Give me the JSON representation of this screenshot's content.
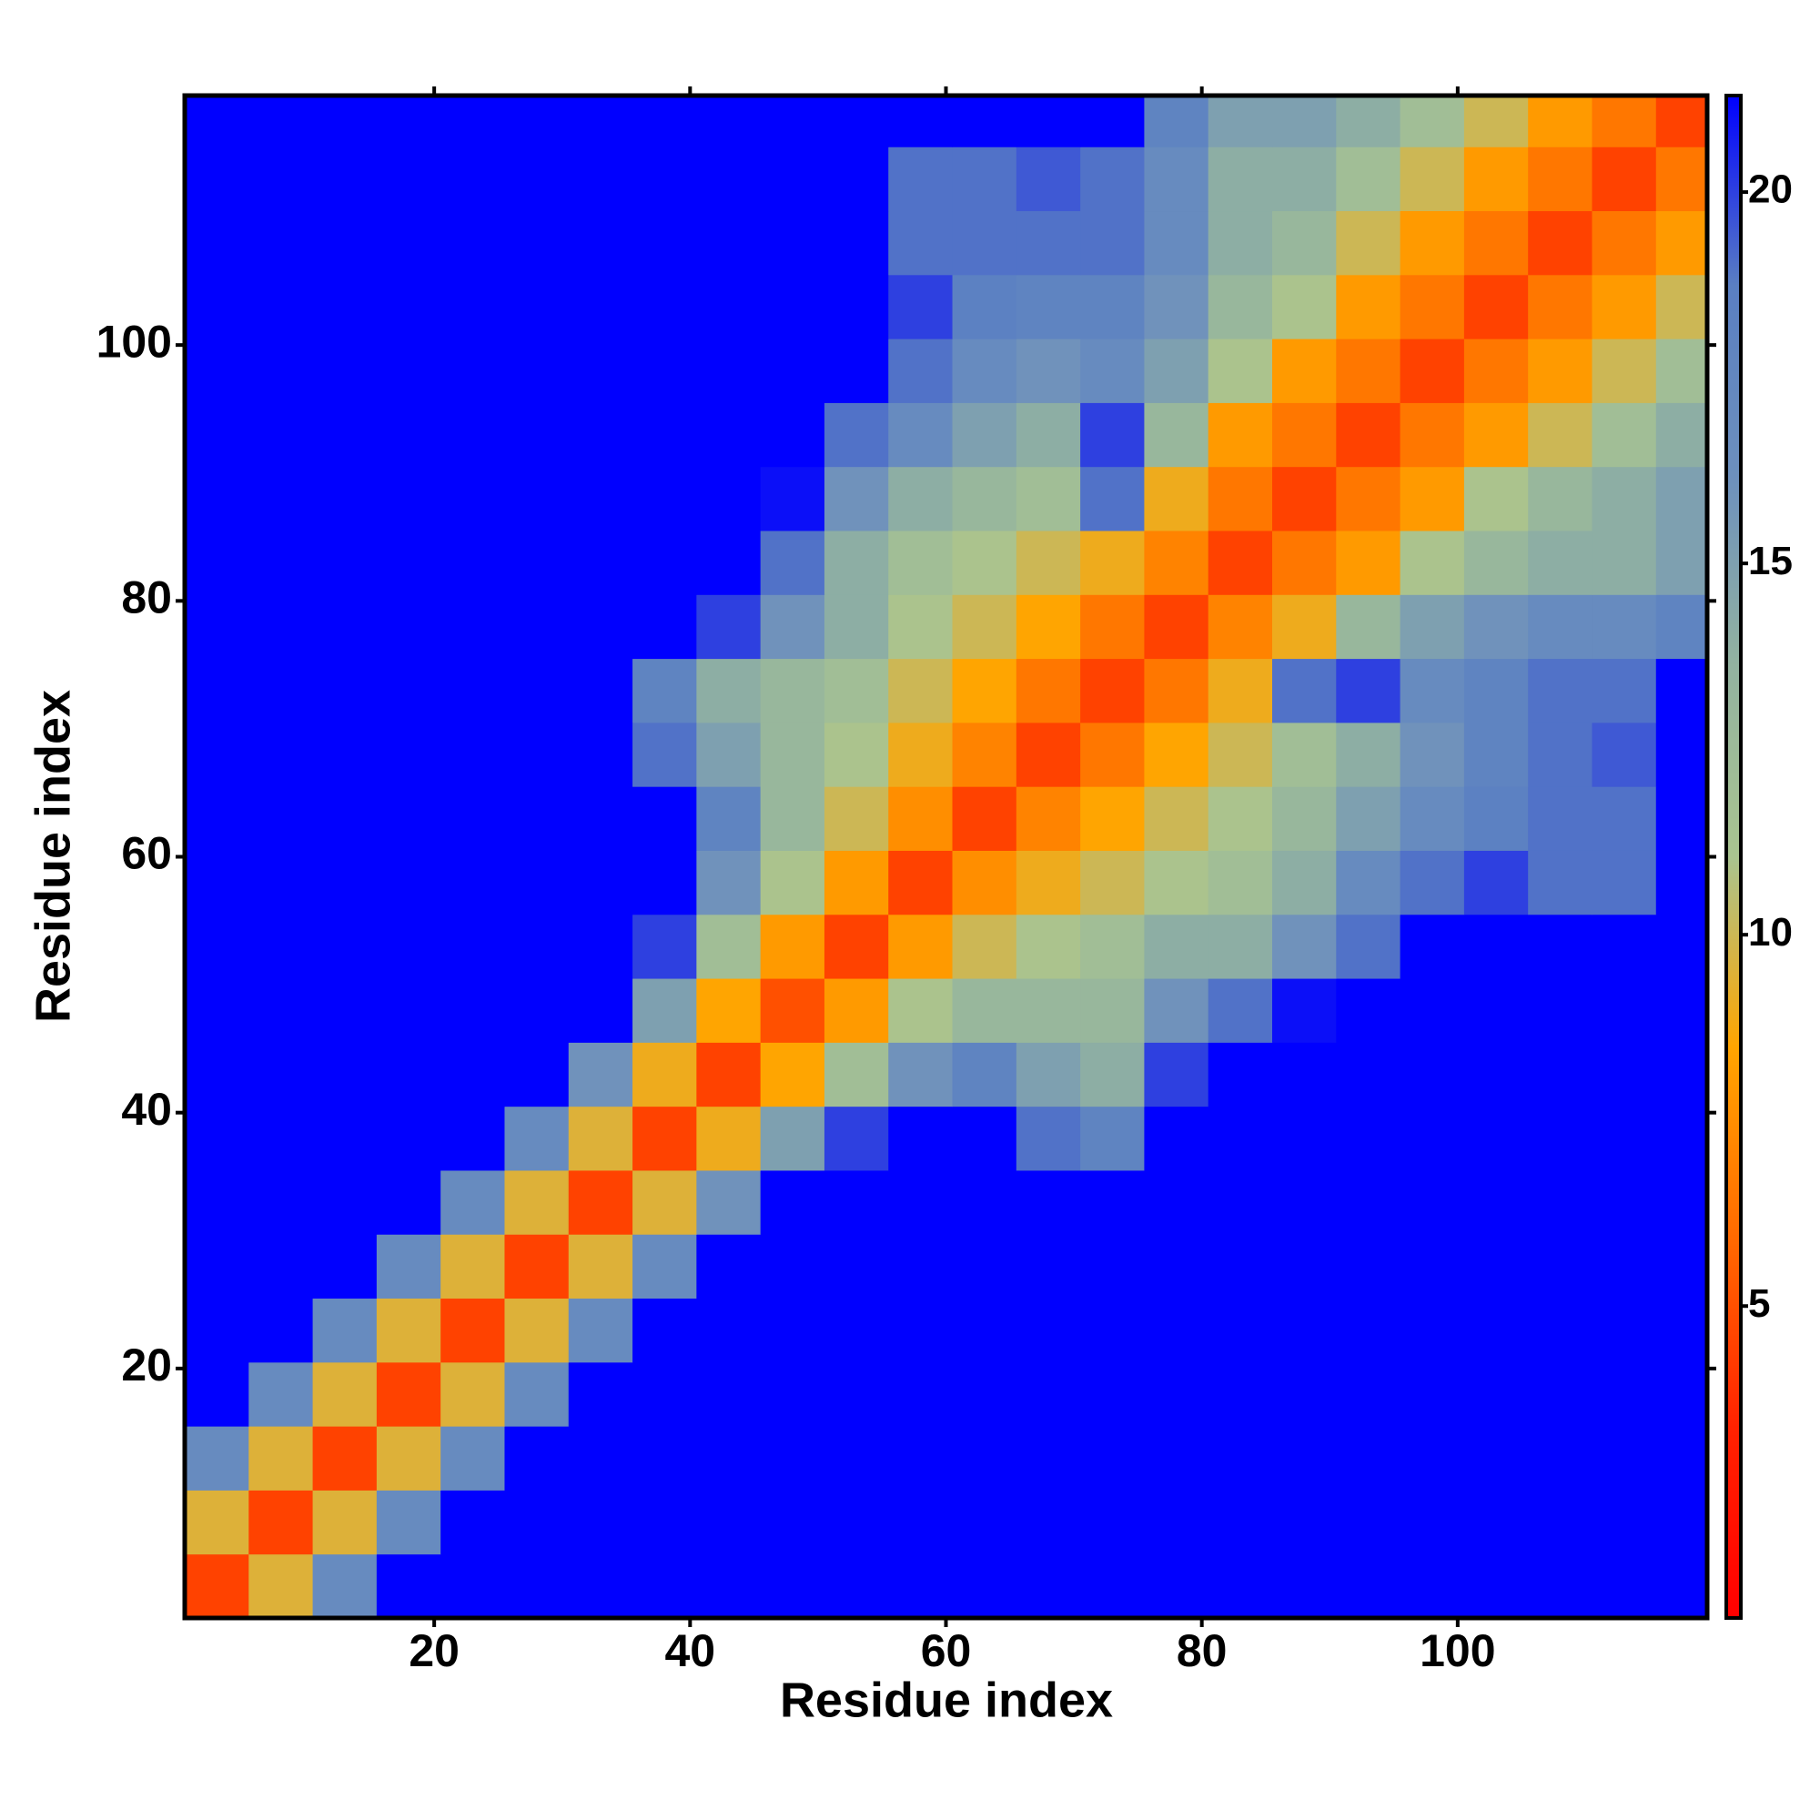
{
  "chart_data": {
    "type": "heatmap",
    "x_label": "Residue index",
    "y_label": "Residue index",
    "xlim": [
      0.5,
      119.5
    ],
    "ylim": [
      0.5,
      119.5
    ],
    "xticks": [
      20,
      40,
      60,
      80,
      100
    ],
    "yticks": [
      20,
      40,
      60,
      80,
      100
    ],
    "x_bins": [
      0.5,
      5.5,
      10.5,
      15.5,
      20.5,
      25.5,
      30.5,
      35.5,
      40.5,
      45.5,
      50.5,
      55.5,
      60.5,
      65.5,
      70.5,
      75.5,
      80.5,
      85.5,
      90.5,
      95.5,
      100.5,
      105.5,
      110.5,
      115.5,
      119.5
    ],
    "y_bins": [
      0.5,
      5.5,
      10.5,
      15.5,
      20.5,
      25.5,
      30.5,
      35.5,
      40.5,
      45.5,
      50.5,
      55.5,
      60.5,
      65.5,
      70.5,
      75.5,
      80.5,
      85.5,
      90.5,
      95.5,
      100.5,
      105.5,
      110.5,
      115.5,
      119.5
    ],
    "zlim": [
      0.8,
      21.3
    ],
    "zticks": [
      5,
      10,
      15,
      20
    ],
    "colorscale": [
      "#ff0000",
      "#ff2200",
      "#ff6a00",
      "#ffa500",
      "#a9c490",
      "#93b3a0",
      "#6d90bd",
      "#5a7fc2",
      "#0000ff"
    ],
    "z": [
      [
        4.5,
        9.5,
        17,
        21.3,
        21.3,
        21.3,
        21.3,
        21.3,
        21.3,
        21.3,
        21.3,
        21.3,
        21.3,
        21.3,
        21.3,
        21.3,
        21.3,
        21.3,
        21.3,
        21.3,
        21.3,
        21.3,
        21.3,
        21.3
      ],
      [
        9.5,
        4.5,
        9.5,
        17,
        21.3,
        21.3,
        21.3,
        21.3,
        21.3,
        21.3,
        21.3,
        21.3,
        21.3,
        21.3,
        21.3,
        21.3,
        21.3,
        21.3,
        21.3,
        21.3,
        21.3,
        21.3,
        21.3,
        21.3
      ],
      [
        17,
        9.5,
        4.5,
        9.5,
        17,
        21.3,
        21.3,
        21.3,
        21.3,
        21.3,
        21.3,
        21.3,
        21.3,
        21.3,
        21.3,
        21.3,
        21.3,
        21.3,
        21.3,
        21.3,
        21.3,
        21.3,
        21.3,
        21.3
      ],
      [
        21.3,
        17,
        9.5,
        4.5,
        9.5,
        17,
        21.3,
        21.3,
        21.3,
        21.3,
        21.3,
        21.3,
        21.3,
        21.3,
        21.3,
        21.3,
        21.3,
        21.3,
        21.3,
        21.3,
        21.3,
        21.3,
        21.3,
        21.3
      ],
      [
        21.3,
        21.3,
        17,
        9.5,
        4.5,
        9.5,
        17,
        21.3,
        21.3,
        21.3,
        21.3,
        21.3,
        21.3,
        21.3,
        21.3,
        21.3,
        21.3,
        21.3,
        21.3,
        21.3,
        21.3,
        21.3,
        21.3,
        21.3
      ],
      [
        21.3,
        21.3,
        21.3,
        17,
        9.5,
        4.5,
        9.5,
        17,
        21.3,
        21.3,
        21.3,
        21.3,
        21.3,
        21.3,
        21.3,
        21.3,
        21.3,
        21.3,
        21.3,
        21.3,
        21.3,
        21.3,
        21.3,
        21.3
      ],
      [
        21.3,
        21.3,
        21.3,
        21.3,
        17,
        9.5,
        4.5,
        9.5,
        16,
        21.3,
        21.3,
        21.3,
        21.3,
        21.3,
        21.3,
        21.3,
        21.3,
        21.3,
        21.3,
        21.3,
        21.3,
        21.3,
        21.3,
        21.3
      ],
      [
        21.3,
        21.3,
        21.3,
        21.3,
        21.3,
        17,
        9.5,
        4.5,
        9,
        15,
        20,
        21.3,
        21.3,
        19,
        18,
        21.3,
        21.3,
        21.3,
        21.3,
        21.3,
        21.3,
        21.3,
        21.3,
        21.3
      ],
      [
        21.3,
        21.3,
        21.3,
        21.3,
        21.3,
        21.3,
        16,
        9,
        4.5,
        8.5,
        12,
        16,
        18,
        15,
        14,
        20,
        21.3,
        21.3,
        21.3,
        21.3,
        21.3,
        21.3,
        21.3,
        21.3
      ],
      [
        21.3,
        21.3,
        21.3,
        21.3,
        21.3,
        21.3,
        21.3,
        15,
        8.5,
        5,
        8,
        11,
        13,
        13,
        13,
        16,
        19,
        21,
        21.3,
        21.3,
        21.3,
        21.3,
        21.3,
        21.3
      ],
      [
        21.3,
        21.3,
        21.3,
        21.3,
        21.3,
        21.3,
        21.3,
        20,
        12,
        8,
        4.5,
        8,
        10,
        11,
        12,
        14,
        14,
        16,
        19,
        21.3,
        21.3,
        21.3,
        21.3,
        21.3
      ],
      [
        21.3,
        21.3,
        21.3,
        21.3,
        21.3,
        21.3,
        21.3,
        21.3,
        16,
        11,
        8,
        4.5,
        7.5,
        9,
        10,
        11,
        12,
        14,
        17,
        19,
        20,
        19,
        19,
        21.3
      ],
      [
        21.3,
        21.3,
        21.3,
        21.3,
        21.3,
        21.3,
        21.3,
        21.3,
        18,
        13,
        10,
        7.5,
        4.5,
        7,
        8.5,
        10,
        11,
        13,
        15,
        17,
        18.5,
        19,
        19,
        21.3
      ],
      [
        21.3,
        21.3,
        21.3,
        21.3,
        21.3,
        21.3,
        21.3,
        19,
        15,
        13,
        11,
        9,
        7,
        4.5,
        6.5,
        8.5,
        10,
        12,
        14,
        16,
        18,
        19,
        19.5,
        21.3
      ],
      [
        21.3,
        21.3,
        21.3,
        21.3,
        21.3,
        21.3,
        21.3,
        18,
        14,
        13,
        12,
        10,
        8.5,
        6.5,
        4.5,
        6.5,
        9,
        19,
        20,
        17,
        18,
        19,
        19,
        21.3
      ],
      [
        21.3,
        21.3,
        21.3,
        21.3,
        21.3,
        21.3,
        21.3,
        21.3,
        20,
        16,
        14,
        11,
        10,
        8.5,
        6.5,
        4.5,
        7,
        9,
        13,
        15,
        16,
        17,
        17,
        18
      ],
      [
        21.3,
        21.3,
        21.3,
        21.3,
        21.3,
        21.3,
        21.3,
        21.3,
        21.3,
        19,
        14,
        12,
        11,
        10,
        9,
        7,
        4.5,
        6.5,
        8,
        11,
        13,
        14,
        14,
        15
      ],
      [
        21.3,
        21.3,
        21.3,
        21.3,
        21.3,
        21.3,
        21.3,
        21.3,
        21.3,
        21,
        16,
        14,
        13,
        12,
        19,
        9,
        6.5,
        4.5,
        6.5,
        8,
        11,
        13,
        14,
        15
      ],
      [
        21.3,
        21.3,
        21.3,
        21.3,
        21.3,
        21.3,
        21.3,
        21.3,
        21.3,
        21.3,
        19,
        17,
        15,
        14,
        20,
        13,
        8,
        6.5,
        4.5,
        6.5,
        8,
        10,
        12,
        14
      ],
      [
        21.3,
        21.3,
        21.3,
        21.3,
        21.3,
        21.3,
        21.3,
        21.3,
        21.3,
        21.3,
        21.3,
        19,
        17,
        16,
        17,
        15,
        11,
        8,
        6.5,
        4.5,
        6.5,
        8,
        10,
        12
      ],
      [
        21.3,
        21.3,
        21.3,
        21.3,
        21.3,
        21.3,
        21.3,
        21.3,
        21.3,
        21.3,
        21.3,
        20,
        18.5,
        18,
        18,
        16,
        13,
        11,
        8,
        6.5,
        4.5,
        6.5,
        8,
        10
      ],
      [
        21.3,
        21.3,
        21.3,
        21.3,
        21.3,
        21.3,
        21.3,
        21.3,
        21.3,
        21.3,
        21.3,
        19,
        19,
        19,
        19,
        17,
        14,
        13,
        10,
        8,
        6.5,
        4.5,
        6.5,
        8
      ],
      [
        21.3,
        21.3,
        21.3,
        21.3,
        21.3,
        21.3,
        21.3,
        21.3,
        21.3,
        21.3,
        21.3,
        19,
        19,
        19.5,
        19,
        17,
        14,
        14,
        12,
        10,
        8,
        6.5,
        4.5,
        6.5
      ],
      [
        21.3,
        21.3,
        21.3,
        21.3,
        21.3,
        21.3,
        21.3,
        21.3,
        21.3,
        21.3,
        21.3,
        21.3,
        21.3,
        21.3,
        21.3,
        18,
        15,
        15,
        14,
        12,
        10,
        8,
        6.5,
        4.5
      ]
    ]
  }
}
